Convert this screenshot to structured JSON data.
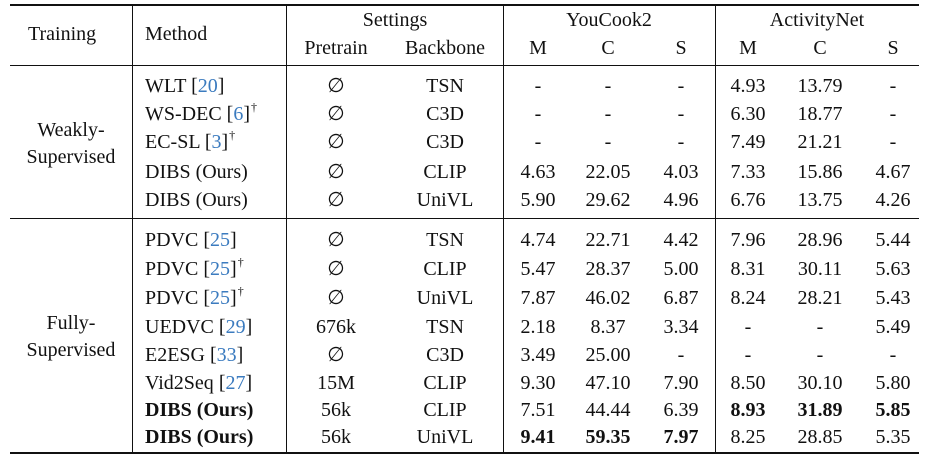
{
  "header": {
    "training": "Training",
    "method": "Method",
    "settings": "Settings",
    "pretrain": "Pretrain",
    "backbone": "Backbone",
    "youcook2": "YouCook2",
    "activitynet": "ActivityNet",
    "m": "M",
    "c": "C",
    "s": "S"
  },
  "groups": {
    "weakly_line1": "Weakly-",
    "weakly_line2": "Supervised",
    "fully_line1": "Fully-",
    "fully_line2": "Supervised"
  },
  "rows": [
    {
      "name": "WLT",
      "ref": "20",
      "dagger": "",
      "pretrain": "∅",
      "backbone": "TSN",
      "v": [
        "-",
        "-",
        "-",
        "4.93",
        "13.79",
        "-"
      ]
    },
    {
      "name": "WS-DEC",
      "ref": "6",
      "dagger": "†",
      "pretrain": "∅",
      "backbone": "C3D",
      "v": [
        "-",
        "-",
        "-",
        "6.30",
        "18.77",
        "-"
      ]
    },
    {
      "name": "EC-SL",
      "ref": "3",
      "dagger": "†",
      "pretrain": "∅",
      "backbone": "C3D",
      "v": [
        "-",
        "-",
        "-",
        "7.49",
        "21.21",
        "-"
      ]
    },
    {
      "name": "DIBS (Ours)",
      "ref": "",
      "dagger": "",
      "pretrain": "∅",
      "backbone": "CLIP",
      "v": [
        "4.63",
        "22.05",
        "4.03",
        "7.33",
        "15.86",
        "4.67"
      ]
    },
    {
      "name": "DIBS (Ours)",
      "ref": "",
      "dagger": "",
      "pretrain": "∅",
      "backbone": "UniVL",
      "v": [
        "5.90",
        "29.62",
        "4.96",
        "6.76",
        "13.75",
        "4.26"
      ]
    },
    {
      "name": "PDVC",
      "ref": "25",
      "dagger": "",
      "pretrain": "∅",
      "backbone": "TSN",
      "v": [
        "4.74",
        "22.71",
        "4.42",
        "7.96",
        "28.96",
        "5.44"
      ]
    },
    {
      "name": "PDVC",
      "ref": "25",
      "dagger": "†",
      "pretrain": "∅",
      "backbone": "CLIP",
      "v": [
        "5.47",
        "28.37",
        "5.00",
        "8.31",
        "30.11",
        "5.63"
      ]
    },
    {
      "name": "PDVC",
      "ref": "25",
      "dagger": "†",
      "pretrain": "∅",
      "backbone": "UniVL",
      "v": [
        "7.87",
        "46.02",
        "6.87",
        "8.24",
        "28.21",
        "5.43"
      ]
    },
    {
      "name": "UEDVC",
      "ref": "29",
      "dagger": "",
      "pretrain": "676k",
      "backbone": "TSN",
      "v": [
        "2.18",
        "8.37",
        "3.34",
        "-",
        "-",
        "5.49"
      ]
    },
    {
      "name": "E2ESG",
      "ref": "33",
      "dagger": "",
      "pretrain": "∅",
      "backbone": "C3D",
      "v": [
        "3.49",
        "25.00",
        "-",
        "-",
        "-",
        "-"
      ]
    },
    {
      "name": "Vid2Seq",
      "ref": "27",
      "dagger": "",
      "pretrain": "15M",
      "backbone": "CLIP",
      "v": [
        "9.30",
        "47.10",
        "7.90",
        "8.50",
        "30.10",
        "5.80"
      ]
    },
    {
      "name": "DIBS (Ours)",
      "ref": "",
      "dagger": "",
      "pretrain": "56k",
      "backbone": "CLIP",
      "v": [
        "7.51",
        "44.44",
        "6.39",
        "8.93",
        "31.89",
        "5.85"
      ]
    },
    {
      "name": "DIBS (Ours)",
      "ref": "",
      "dagger": "",
      "pretrain": "56k",
      "backbone": "UniVL",
      "v": [
        "9.41",
        "59.35",
        "7.97",
        "8.25",
        "28.85",
        "5.35"
      ]
    }
  ]
}
